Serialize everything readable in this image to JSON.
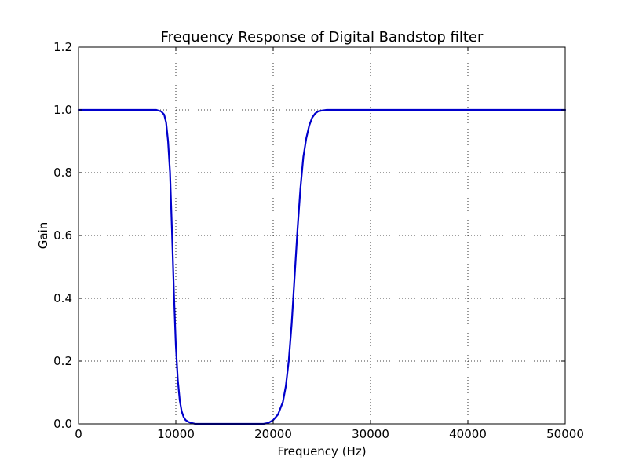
{
  "chart_data": {
    "type": "line",
    "title": "Frequency Response of Digital Bandstop filter",
    "xlabel": "Frequency (Hz)",
    "ylabel": "Gain",
    "xlim": [
      0,
      50000
    ],
    "ylim": [
      0.0,
      1.2
    ],
    "xticks": [
      0,
      10000,
      20000,
      30000,
      40000,
      50000
    ],
    "xtick_labels": [
      "0",
      "10000",
      "20000",
      "30000",
      "40000",
      "50000"
    ],
    "yticks": [
      0.0,
      0.2,
      0.4,
      0.6,
      0.8,
      1.0,
      1.2
    ],
    "ytick_labels": [
      "0.0",
      "0.2",
      "0.4",
      "0.6",
      "0.8",
      "1.0",
      "1.2"
    ],
    "grid": true,
    "legend": "none",
    "series": [
      {
        "color": "#0000cc",
        "x": [
          0,
          5000,
          7000,
          8000,
          8500,
          8800,
          9000,
          9200,
          9400,
          9600,
          9800,
          10000,
          10200,
          10400,
          10600,
          10800,
          11000,
          11300,
          11600,
          12000,
          13000,
          15000,
          17000,
          19000,
          19500,
          20000,
          20500,
          21000,
          21300,
          21600,
          21900,
          22200,
          22500,
          22800,
          23100,
          23400,
          23700,
          24000,
          24300,
          24600,
          25000,
          25500,
          26000,
          27000,
          30000,
          35000,
          40000,
          45000,
          50000
        ],
        "y": [
          1.0,
          1.0,
          1.0,
          1.0,
          0.995,
          0.985,
          0.96,
          0.9,
          0.8,
          0.62,
          0.42,
          0.25,
          0.14,
          0.075,
          0.04,
          0.022,
          0.012,
          0.006,
          0.003,
          0.0,
          0.0,
          0.0,
          0.0,
          0.0,
          0.003,
          0.012,
          0.03,
          0.07,
          0.12,
          0.2,
          0.32,
          0.47,
          0.62,
          0.75,
          0.85,
          0.91,
          0.95,
          0.975,
          0.988,
          0.995,
          0.998,
          1.0,
          1.0,
          1.0,
          1.0,
          1.0,
          1.0,
          1.0,
          1.0
        ]
      }
    ]
  }
}
